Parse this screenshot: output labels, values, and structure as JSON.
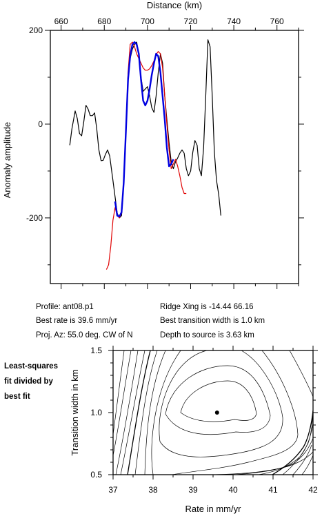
{
  "chart_data": [
    {
      "type": "line",
      "xlabel": "Distance (km)",
      "ylabel": "Anomaly amplitude",
      "xlim": [
        655,
        770
      ],
      "ylim": [
        -340,
        200
      ],
      "xticks": [
        "660",
        "680",
        "700",
        "720",
        "740",
        "760"
      ],
      "yticks": [
        "200",
        "0",
        "-200"
      ],
      "grid": false,
      "series": [
        {
          "color": "#000000",
          "points": [
            [
              664,
              -45
            ],
            [
              665,
              -10
            ],
            [
              666.5,
              28
            ],
            [
              667.5,
              12
            ],
            [
              668.5,
              -20
            ],
            [
              669.5,
              -25
            ],
            [
              670.5,
              5
            ],
            [
              671.5,
              40
            ],
            [
              672.5,
              32
            ],
            [
              673.5,
              18
            ],
            [
              674.5,
              18
            ],
            [
              675.5,
              24
            ],
            [
              676.5,
              -10
            ],
            [
              677.5,
              -55
            ],
            [
              678.5,
              -78
            ],
            [
              679.5,
              -77
            ],
            [
              680.5,
              -65
            ],
            [
              681.5,
              -55
            ],
            [
              682.5,
              -68
            ],
            [
              684,
              -120
            ],
            [
              685,
              -155
            ],
            [
              686,
              -190
            ],
            [
              687,
              -200
            ],
            [
              688,
              -195
            ],
            [
              689,
              -130
            ],
            [
              690,
              -20
            ],
            [
              691,
              100
            ],
            [
              692,
              140
            ],
            [
              693,
              160
            ],
            [
              694,
              170
            ],
            [
              695,
              175
            ],
            [
              696,
              150
            ],
            [
              697,
              100
            ],
            [
              698,
              70
            ],
            [
              699,
              75
            ],
            [
              700,
              80
            ],
            [
              701,
              60
            ],
            [
              702,
              35
            ],
            [
              703,
              25
            ],
            [
              704,
              60
            ],
            [
              705,
              110
            ],
            [
              706,
              150
            ],
            [
              707,
              130
            ],
            [
              708,
              60
            ],
            [
              709,
              10
            ],
            [
              710,
              -40
            ],
            [
              711,
              -80
            ],
            [
              712,
              -95
            ],
            [
              713,
              -80
            ],
            [
              714,
              -72
            ],
            [
              715,
              -62
            ],
            [
              716,
              -55
            ],
            [
              717,
              -62
            ],
            [
              718,
              -95
            ],
            [
              719,
              -110
            ],
            [
              720,
              -100
            ],
            [
              721,
              -60
            ],
            [
              722,
              -35
            ],
            [
              723,
              -45
            ],
            [
              724,
              -95
            ],
            [
              725,
              -110
            ],
            [
              726,
              -50
            ],
            [
              727,
              60
            ],
            [
              728,
              180
            ],
            [
              729,
              165
            ],
            [
              730,
              60
            ],
            [
              731,
              -60
            ],
            [
              732,
              -120
            ],
            [
              733,
              -150
            ],
            [
              734,
              -195
            ]
          ]
        },
        {
          "color": "#e00000",
          "points": [
            [
              681,
              -310
            ],
            [
              682,
              -300
            ],
            [
              683,
              -260
            ],
            [
              684,
              -205
            ],
            [
              685,
              -178
            ],
            [
              686,
              -195
            ],
            [
              687,
              -200
            ],
            [
              688,
              -190
            ],
            [
              689,
              -130
            ],
            [
              690,
              -10
            ],
            [
              691,
              110
            ],
            [
              692,
              170
            ],
            [
              693,
              175
            ],
            [
              694,
              165
            ],
            [
              695,
              150
            ],
            [
              696,
              140
            ],
            [
              697,
              130
            ],
            [
              698,
              120
            ],
            [
              699,
              115
            ],
            [
              700,
              115
            ],
            [
              701,
              118
            ],
            [
              702,
              125
            ],
            [
              703,
              135
            ],
            [
              704,
              148
            ],
            [
              705,
              155
            ],
            [
              706,
              150
            ],
            [
              707,
              120
            ],
            [
              708,
              60
            ],
            [
              709,
              0
            ],
            [
              710,
              -55
            ],
            [
              711,
              -95
            ],
            [
              712,
              -85
            ],
            [
              713,
              -75
            ],
            [
              714,
              -90
            ],
            [
              715,
              -110
            ],
            [
              716,
              -135
            ],
            [
              717,
              -148
            ],
            [
              718,
              -148
            ]
          ]
        },
        {
          "color": "#0000e0",
          "points": [
            [
              685,
              -165
            ],
            [
              686,
              -195
            ],
            [
              687,
              -197
            ],
            [
              688,
              -188
            ],
            [
              689,
              -125
            ],
            [
              690,
              -15
            ],
            [
              691,
              95
            ],
            [
              692,
              145
            ],
            [
              693,
              170
            ],
            [
              694,
              175
            ],
            [
              695,
              170
            ],
            [
              696,
              150
            ],
            [
              697,
              95
            ],
            [
              698,
              50
            ],
            [
              699,
              40
            ],
            [
              700,
              50
            ],
            [
              701,
              75
            ],
            [
              702,
              105
            ],
            [
              703,
              130
            ],
            [
              704,
              150
            ],
            [
              705,
              145
            ],
            [
              706,
              110
            ],
            [
              707,
              60
            ],
            [
              708,
              10
            ],
            [
              709,
              -50
            ],
            [
              710,
              -90
            ],
            [
              711,
              -85
            ],
            [
              712,
              -75
            ]
          ]
        }
      ]
    },
    {
      "type": "contour",
      "xlabel": "Rate in mm/yr",
      "ylabel": "Transition width in km",
      "xlim": [
        37,
        42
      ],
      "ylim": [
        0.5,
        1.5
      ],
      "xticks": [
        "37",
        "38",
        "39",
        "40",
        "41",
        "42"
      ],
      "yticks": [
        "1.5",
        "1.0",
        "0.5"
      ],
      "best_fit": {
        "x": 39.6,
        "y": 1.0
      },
      "grid": false
    }
  ],
  "info": {
    "profile": "Profile: ant08.p1",
    "best_rate": "Best rate is 39.6 mm/yr",
    "proj_az": "Proj. Az: 55.0 deg. CW of N",
    "ridge_xing": "Ridge Xing is -14.44 66.16",
    "transition_width": "Best transition width is 1.0 km",
    "depth": "Depth to source is   3.63 km"
  },
  "side_note": {
    "line1": "Least-squares",
    "line2": "fit divided by",
    "line3": "best fit"
  }
}
